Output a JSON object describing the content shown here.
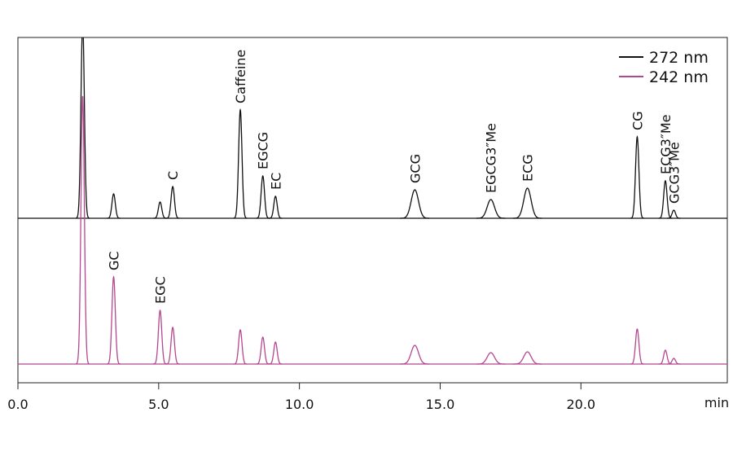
{
  "chart_data": {
    "type": "chromatogram",
    "xlabel": "min",
    "xlim": [
      0,
      25.2
    ],
    "xticks": [
      {
        "value": 0,
        "label": "0.0"
      },
      {
        "value": 5,
        "label": "5.0"
      },
      {
        "value": 10,
        "label": "10.0"
      },
      {
        "value": 15,
        "label": "15.0"
      },
      {
        "value": 20,
        "label": "20.0"
      }
    ],
    "legend": "top-right",
    "series": [
      {
        "name": "272 nm",
        "color": "#111111",
        "peaks": [
          {
            "time": 2.3,
            "height": 240
          },
          {
            "time": 3.4,
            "height": 30
          },
          {
            "time": 5.05,
            "height": 20
          },
          {
            "time": 5.5,
            "height": 39,
            "label": "C"
          },
          {
            "time": 7.9,
            "height": 133,
            "label": "Caffeine"
          },
          {
            "time": 8.7,
            "height": 52,
            "label": "EGCG"
          },
          {
            "time": 9.15,
            "height": 27,
            "label": "EC"
          },
          {
            "time": 14.1,
            "height": 35,
            "label": "GCG"
          },
          {
            "time": 16.8,
            "height": 23,
            "label": "EGCG3″Me"
          },
          {
            "time": 18.1,
            "height": 37,
            "label": "ECG"
          },
          {
            "time": 22.0,
            "height": 100,
            "label": "CG"
          },
          {
            "time": 23.0,
            "height": 46,
            "label": "ECG3″Me"
          },
          {
            "time": 23.3,
            "height": 10,
            "label": "GCG3″Me"
          }
        ]
      },
      {
        "name": "242 nm",
        "color": "#b5478f",
        "peaks": [
          {
            "time": 2.3,
            "height": 329
          },
          {
            "time": 3.4,
            "height": 107,
            "label": "GC"
          },
          {
            "time": 5.05,
            "height": 66,
            "label": "EGC"
          },
          {
            "time": 5.5,
            "height": 45
          },
          {
            "time": 7.9,
            "height": 42
          },
          {
            "time": 8.7,
            "height": 33
          },
          {
            "time": 9.15,
            "height": 27
          },
          {
            "time": 14.1,
            "height": 23
          },
          {
            "time": 16.8,
            "height": 14
          },
          {
            "time": 18.1,
            "height": 15
          },
          {
            "time": 22.0,
            "height": 43
          },
          {
            "time": 23.0,
            "height": 17
          },
          {
            "time": 23.3,
            "height": 7
          }
        ]
      }
    ]
  }
}
